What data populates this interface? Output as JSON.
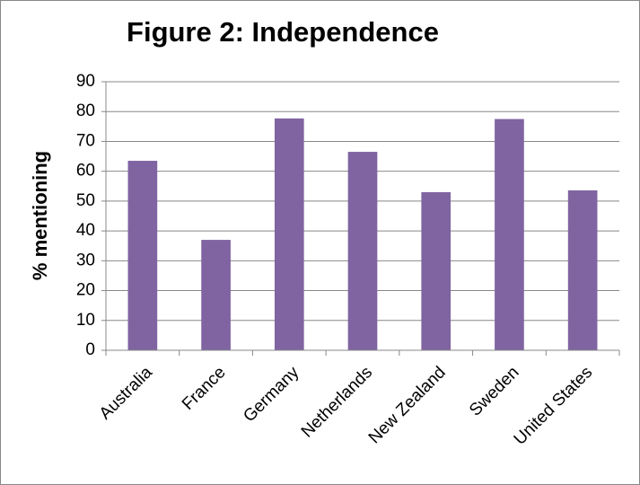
{
  "chart_data": {
    "type": "bar",
    "title": "Figure 2: Independence",
    "y_label": "% mentioning",
    "categories": [
      "Australia",
      "France",
      "Germany",
      "Netherlands",
      "New Zealand",
      "Sweden",
      "United States"
    ],
    "values": [
      63.5,
      37,
      77.7,
      66.5,
      53,
      77.5,
      53.6
    ],
    "color": "#8064a2",
    "ylim": [
      0,
      90
    ],
    "yticks": [
      0,
      10,
      20,
      30,
      40,
      50,
      60,
      70,
      80,
      90
    ],
    "grid": true
  }
}
